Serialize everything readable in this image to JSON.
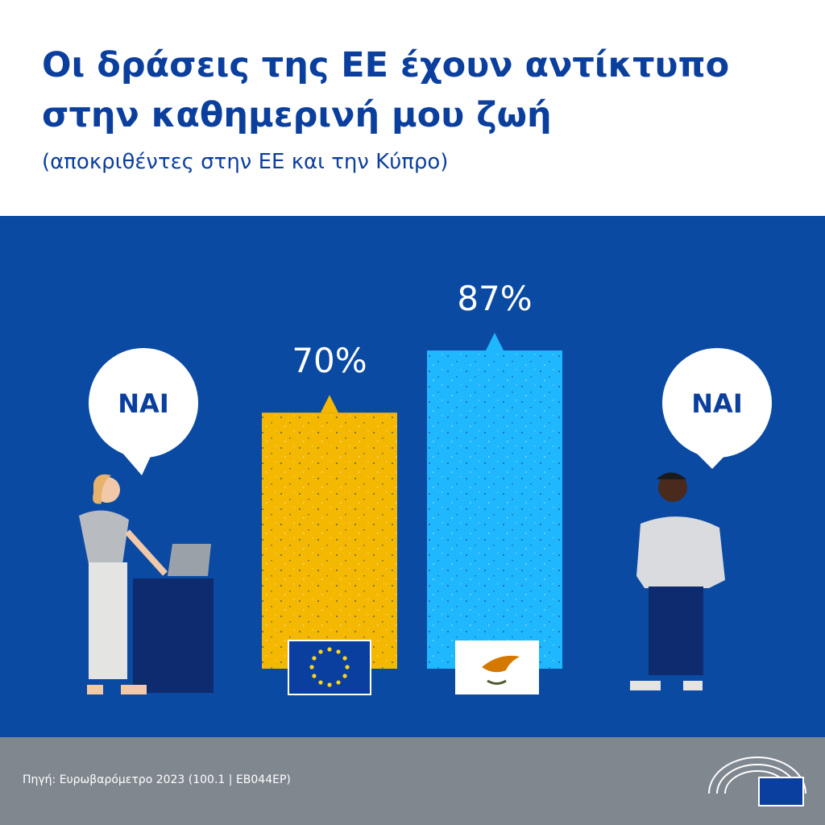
{
  "chart_data": {
    "type": "bar",
    "title": "Οι δράσεις της ΕΕ έχουν αντίκτυπο στην καθημερινή μου ζωή",
    "subtitle": "(αποκριθέντες στην ΕΕ και την Κύπρο)",
    "values": [
      70,
      87
    ],
    "value_labels": [
      "70%",
      "87%"
    ],
    "colors": [
      "#f5b800",
      "#1fb8ff"
    ],
    "annotations": [
      "ΝΑΙ",
      "ΝΑΙ"
    ],
    "source": "Πηγή: Ευρωβαρόμετρο 2023 (100.1 | EB044EP)"
  }
}
